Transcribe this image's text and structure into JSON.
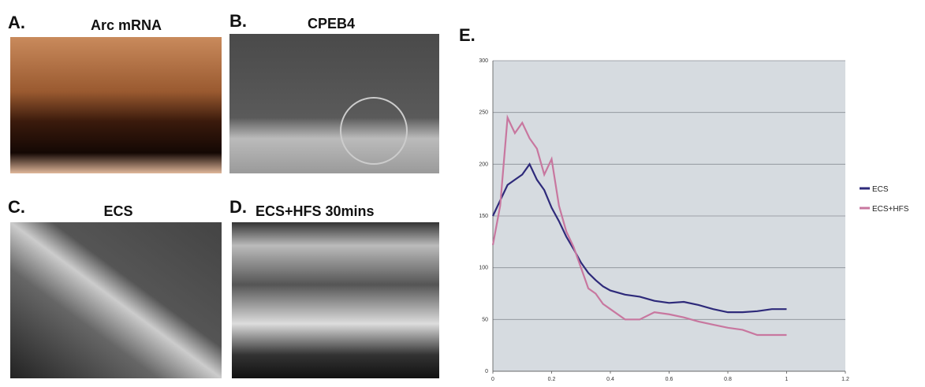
{
  "panels": [
    {
      "label": "A.",
      "title": "Arc mRNA"
    },
    {
      "label": "B.",
      "title": "CPEB4"
    },
    {
      "label": "C.",
      "title": "ECS"
    },
    {
      "label": "D.",
      "title": "ECS+HFS 30mins"
    }
  ],
  "chart_data": {
    "type": "line",
    "title": "E.",
    "x": [
      0,
      0.025,
      0.05,
      0.075,
      0.1,
      0.125,
      0.15,
      0.175,
      0.2,
      0.225,
      0.25,
      0.275,
      0.3,
      0.325,
      0.35,
      0.375,
      0.4,
      0.45,
      0.5,
      0.55,
      0.6,
      0.65,
      0.7,
      0.75,
      0.8,
      0.85,
      0.9,
      0.95,
      1
    ],
    "series": [
      {
        "name": "ECS",
        "color": "#2e2a7a",
        "values": [
          150,
          165,
          180,
          185,
          190,
          200,
          185,
          175,
          158,
          145,
          130,
          118,
          105,
          95,
          88,
          82,
          78,
          74,
          72,
          68,
          66,
          67,
          64,
          60,
          57,
          57,
          58,
          60,
          60
        ]
      },
      {
        "name": "ECS+HFS",
        "color": "#c8779f",
        "values": [
          122,
          160,
          245,
          230,
          240,
          225,
          215,
          190,
          205,
          160,
          135,
          120,
          100,
          80,
          75,
          65,
          60,
          50,
          50,
          57,
          55,
          52,
          48,
          45,
          42,
          40,
          35,
          35,
          35
        ]
      }
    ],
    "xlim": [
      0,
      1.2
    ],
    "xticks": [
      0,
      0.2,
      0.4,
      0.6,
      0.8,
      1,
      1.2
    ],
    "ylim": [
      0,
      300
    ],
    "yticks": [
      0,
      50,
      100,
      150,
      200,
      250,
      300
    ],
    "grid": true,
    "legend": "right"
  }
}
